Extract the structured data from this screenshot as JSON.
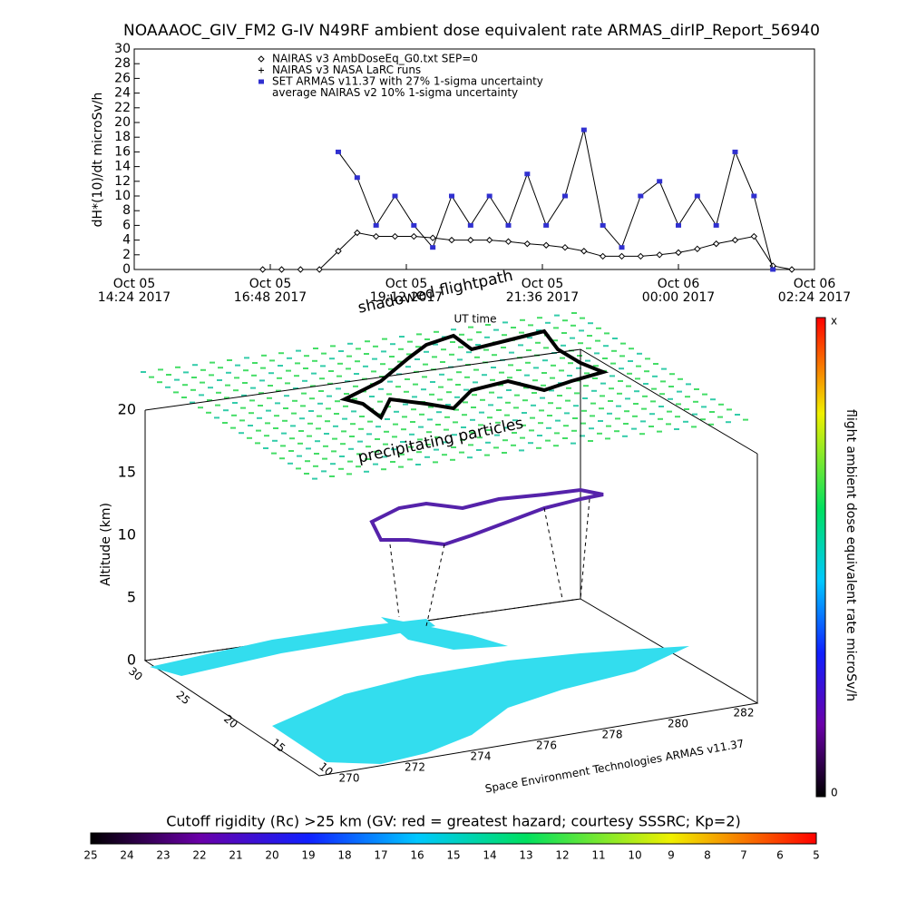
{
  "chart_data": {
    "type": "line",
    "title": "NOAAAOC_GIV_FM2 G-IV   N49RF  ambient dose equivalent rate ARMAS_dirIP_Report_56940",
    "y_label": "dH*(10)/dt microSv/h",
    "x_label": "UT time",
    "xlim": [
      "2017-10-05T14:24",
      "2017-10-06T02:24"
    ],
    "xticks": [
      {
        "value": "2017-10-05T14:24",
        "label": [
          "Oct 05",
          "14:24 2017"
        ]
      },
      {
        "value": "2017-10-05T16:48",
        "label": [
          "Oct 05",
          "16:48 2017"
        ]
      },
      {
        "value": "2017-10-05T19:12",
        "label": [
          "Oct 05",
          "19:12 2017"
        ]
      },
      {
        "value": "2017-10-05T21:36",
        "label": [
          "Oct 05",
          "21:36 2017"
        ]
      },
      {
        "value": "2017-10-06T00:00",
        "label": [
          "Oct 06",
          "00:00 2017"
        ]
      },
      {
        "value": "2017-10-06T02:24",
        "label": [
          "Oct 06",
          "02:24 2017"
        ]
      }
    ],
    "ylim": [
      0,
      30
    ],
    "yticks": [
      0,
      2,
      4,
      6,
      8,
      10,
      12,
      14,
      16,
      18,
      20,
      22,
      24,
      26,
      28,
      30
    ],
    "legend_notes": [
      "NAIRAS v3 NASA LaRC runs",
      "average NAIRAS v2 10% 1-sigma uncertainty"
    ],
    "series": [
      {
        "name": "NAIRAS v3 AmbDoseEq_G0.txt SEP=0",
        "color": "#000000",
        "marker": "diamond",
        "x": [
          "2017-10-05T16:40",
          "2017-10-05T17:00",
          "2017-10-05T17:20",
          "2017-10-05T17:40",
          "2017-10-05T18:00",
          "2017-10-05T18:20",
          "2017-10-05T18:40",
          "2017-10-05T19:00",
          "2017-10-05T19:20",
          "2017-10-05T19:40",
          "2017-10-05T20:00",
          "2017-10-05T20:20",
          "2017-10-05T20:40",
          "2017-10-05T21:00",
          "2017-10-05T21:20",
          "2017-10-05T21:40",
          "2017-10-05T22:00",
          "2017-10-05T22:20",
          "2017-10-05T22:40",
          "2017-10-05T23:00",
          "2017-10-05T23:20",
          "2017-10-05T23:40",
          "2017-10-06T00:00",
          "2017-10-06T00:20",
          "2017-10-06T00:40",
          "2017-10-06T01:00",
          "2017-10-06T01:20",
          "2017-10-06T01:40",
          "2017-10-06T02:00"
        ],
        "values": [
          0,
          0,
          0,
          0,
          2.5,
          5,
          4.5,
          4.5,
          4.5,
          4.3,
          4,
          4,
          4,
          3.8,
          3.5,
          3.3,
          3,
          2.5,
          1.8,
          1.8,
          1.8,
          2,
          2.3,
          2.8,
          3.5,
          4,
          4.5,
          0.5,
          0
        ]
      },
      {
        "name": "SET ARMAS v11.37 with 27% 1-sigma uncertainty",
        "color": "#3030d0",
        "marker": "dot",
        "x": [
          "2017-10-05T18:00",
          "2017-10-05T18:20",
          "2017-10-05T18:40",
          "2017-10-05T19:00",
          "2017-10-05T19:20",
          "2017-10-05T19:40",
          "2017-10-05T20:00",
          "2017-10-05T20:20",
          "2017-10-05T20:40",
          "2017-10-05T21:00",
          "2017-10-05T21:20",
          "2017-10-05T21:40",
          "2017-10-05T22:00",
          "2017-10-05T22:20",
          "2017-10-05T22:40",
          "2017-10-05T23:00",
          "2017-10-05T23:20",
          "2017-10-05T23:40",
          "2017-10-06T00:00",
          "2017-10-06T00:20",
          "2017-10-06T00:40",
          "2017-10-06T01:00",
          "2017-10-06T01:20",
          "2017-10-06T01:40"
        ],
        "values": [
          16,
          12.5,
          6,
          10,
          6,
          3,
          10,
          6,
          10,
          6,
          13,
          6,
          10,
          19,
          6,
          3,
          10,
          12,
          6,
          10,
          6,
          16,
          10,
          0
        ]
      }
    ]
  },
  "scene": {
    "annotations": [
      "shadowed flightpath",
      "precipitating particles"
    ],
    "z_label": "Altitude (km)",
    "z_ticks": [
      "0",
      "5",
      "10",
      "15",
      "20"
    ],
    "lat_ticks": [
      "30",
      "25",
      "20",
      "15",
      "10"
    ],
    "lon_ticks": [
      "270",
      "272",
      "274",
      "276",
      "278",
      "280",
      "282"
    ],
    "credit": "Space Environment Technologies ARMAS v11.37"
  },
  "dose_colorbar": {
    "title": "flight ambient dose equivalent rate microSv/h",
    "top_label": "x",
    "bottom_label": "0"
  },
  "rigidity_colorbar": {
    "title": "Cutoff rigidity (Rc) >25 km (GV: red = greatest hazard; courtesy SSSRC; Kp=2)",
    "ticks": [
      "25",
      "24",
      "23",
      "22",
      "21",
      "20",
      "19",
      "18",
      "17",
      "16",
      "15",
      "14",
      "13",
      "12",
      "11",
      "10",
      "9",
      "8",
      "7",
      "6",
      "5"
    ]
  }
}
